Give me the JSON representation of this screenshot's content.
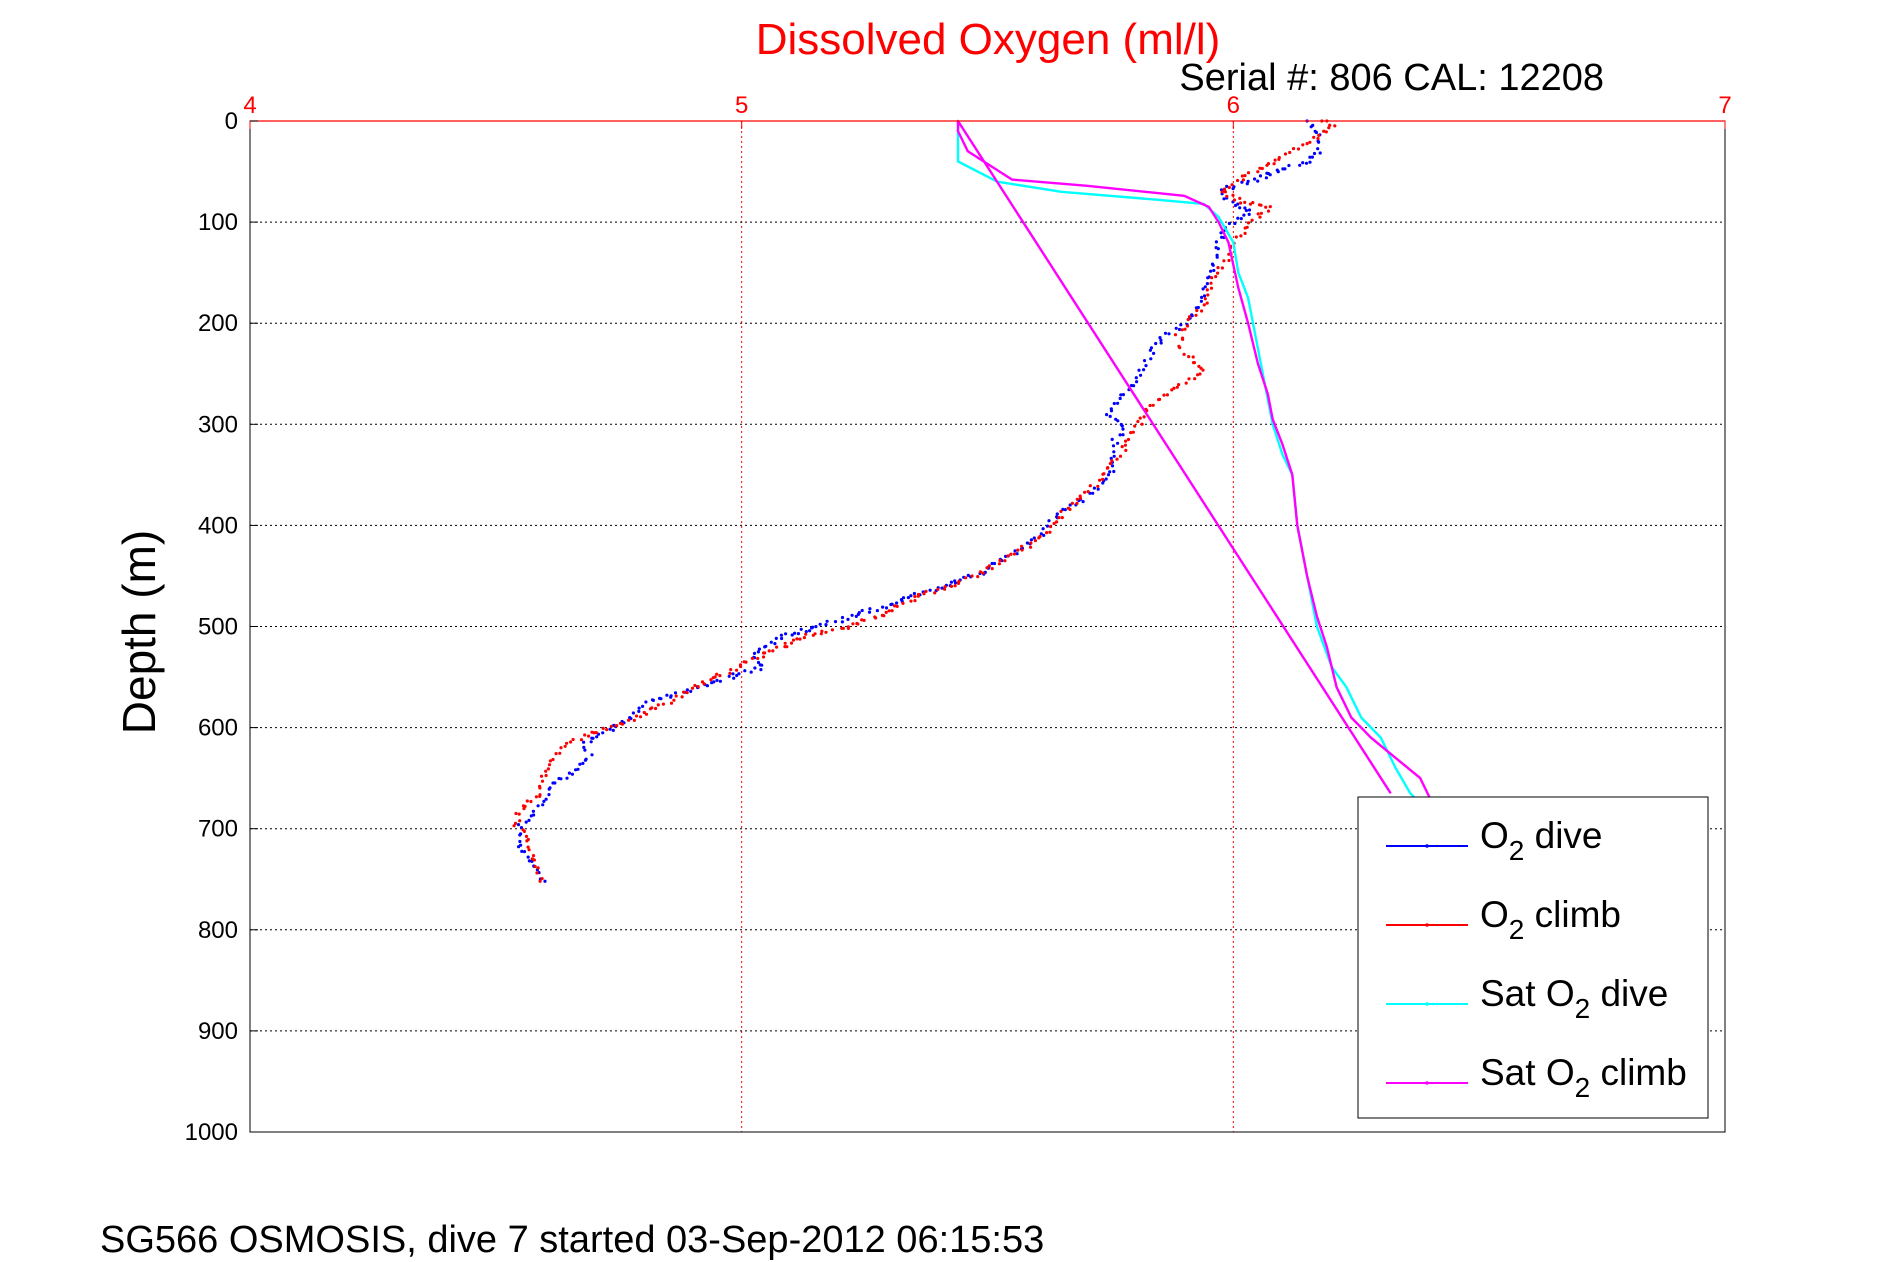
{
  "chart_data": {
    "type": "scatter",
    "title": "Dissolved Oxygen (ml/l)",
    "subtitle": "Serial #: 806  CAL: 12208",
    "ylabel": "Depth (m)",
    "footer": "SG566 OSMOSIS, dive 7 started 03-Sep-2012 06:15:53",
    "xlim": [
      4,
      7
    ],
    "ylim": [
      0,
      1000
    ],
    "x_ticks": [
      "4",
      "5",
      "6",
      "7"
    ],
    "y_ticks": [
      "0",
      "100",
      "200",
      "300",
      "400",
      "500",
      "600",
      "700",
      "800",
      "900",
      "1000"
    ],
    "y_reversed": true,
    "x_axis_position": "top",
    "grid": true,
    "legend_position": "lower-right",
    "legend": [
      {
        "prefix": "O",
        "sub": "2",
        "suffix": " dive",
        "color": "#0000ff",
        "style": "dots"
      },
      {
        "prefix": "O",
        "sub": "2",
        "suffix": " climb",
        "color": "#ff0000",
        "style": "dots"
      },
      {
        "prefix": "Sat O",
        "sub": "2",
        "suffix": " dive",
        "color": "#00ffff",
        "style": "line"
      },
      {
        "prefix": "Sat O",
        "sub": "2",
        "suffix": " climb",
        "color": "#ff00ff",
        "style": "line"
      }
    ],
    "series": [
      {
        "name": "O2 dive",
        "color": "#0000ff",
        "marker": "dot",
        "points": [
          [
            6.15,
            0
          ],
          [
            6.17,
            15
          ],
          [
            6.17,
            30
          ],
          [
            6.15,
            40
          ],
          [
            6.03,
            60
          ],
          [
            5.97,
            70
          ],
          [
            6.0,
            80
          ],
          [
            6.04,
            90
          ],
          [
            6.02,
            95
          ],
          [
            5.99,
            105
          ],
          [
            5.97,
            120
          ],
          [
            5.96,
            140
          ],
          [
            5.94,
            160
          ],
          [
            5.93,
            180
          ],
          [
            5.9,
            200
          ],
          [
            5.85,
            215
          ],
          [
            5.83,
            230
          ],
          [
            5.82,
            245
          ],
          [
            5.8,
            260
          ],
          [
            5.77,
            275
          ],
          [
            5.75,
            290
          ],
          [
            5.78,
            300
          ],
          [
            5.76,
            315
          ],
          [
            5.75,
            330
          ],
          [
            5.75,
            345
          ],
          [
            5.73,
            360
          ],
          [
            5.69,
            375
          ],
          [
            5.64,
            390
          ],
          [
            5.61,
            410
          ],
          [
            5.55,
            430
          ],
          [
            5.47,
            450
          ],
          [
            5.35,
            470
          ],
          [
            5.26,
            485
          ],
          [
            5.15,
            500
          ],
          [
            5.08,
            510
          ],
          [
            5.04,
            520
          ],
          [
            5.02,
            530
          ],
          [
            5.04,
            540
          ],
          [
            4.98,
            550
          ],
          [
            4.88,
            565
          ],
          [
            4.81,
            575
          ],
          [
            4.78,
            590
          ],
          [
            4.72,
            605
          ],
          [
            4.68,
            615
          ],
          [
            4.69,
            630
          ],
          [
            4.65,
            645
          ],
          [
            4.61,
            655
          ],
          [
            4.6,
            670
          ],
          [
            4.57,
            685
          ],
          [
            4.55,
            700
          ],
          [
            4.55,
            715
          ],
          [
            4.57,
            730
          ],
          [
            4.59,
            745
          ],
          [
            4.6,
            752
          ]
        ]
      },
      {
        "name": "O2 climb",
        "color": "#ff0000",
        "marker": "dot",
        "points": [
          [
            4.59,
            752
          ],
          [
            4.58,
            740
          ],
          [
            4.57,
            725
          ],
          [
            4.56,
            710
          ],
          [
            4.54,
            695
          ],
          [
            4.55,
            680
          ],
          [
            4.59,
            668
          ],
          [
            4.6,
            650
          ],
          [
            4.62,
            630
          ],
          [
            4.65,
            615
          ],
          [
            4.7,
            605
          ],
          [
            4.76,
            595
          ],
          [
            4.85,
            575
          ],
          [
            4.9,
            560
          ],
          [
            4.97,
            545
          ],
          [
            5.03,
            530
          ],
          [
            5.08,
            520
          ],
          [
            5.13,
            510
          ],
          [
            5.22,
            500
          ],
          [
            5.3,
            485
          ],
          [
            5.36,
            470
          ],
          [
            5.45,
            455
          ],
          [
            5.51,
            440
          ],
          [
            5.58,
            420
          ],
          [
            5.62,
            405
          ],
          [
            5.66,
            385
          ],
          [
            5.72,
            360
          ],
          [
            5.77,
            330
          ],
          [
            5.81,
            300
          ],
          [
            5.83,
            285
          ],
          [
            5.87,
            270
          ],
          [
            5.94,
            245
          ],
          [
            5.9,
            230
          ],
          [
            5.89,
            210
          ],
          [
            5.91,
            195
          ],
          [
            5.94,
            180
          ],
          [
            5.95,
            160
          ],
          [
            5.98,
            140
          ],
          [
            6.02,
            110
          ],
          [
            6.05,
            95
          ],
          [
            6.08,
            85
          ],
          [
            6.02,
            80
          ],
          [
            5.98,
            70
          ],
          [
            6.02,
            55
          ],
          [
            6.1,
            35
          ],
          [
            6.15,
            20
          ],
          [
            6.2,
            5
          ],
          [
            6.18,
            0
          ]
        ]
      },
      {
        "name": "Sat O2 dive",
        "color": "#00ffff",
        "marker": "line",
        "points": [
          [
            5.44,
            0
          ],
          [
            5.44,
            20
          ],
          [
            5.44,
            40
          ],
          [
            5.46,
            45
          ],
          [
            5.52,
            60
          ],
          [
            5.65,
            70
          ],
          [
            5.85,
            78
          ],
          [
            5.94,
            82
          ],
          [
            5.97,
            95
          ],
          [
            6.0,
            120
          ],
          [
            6.01,
            150
          ],
          [
            6.03,
            175
          ],
          [
            6.04,
            200
          ],
          [
            6.06,
            250
          ],
          [
            6.08,
            300
          ],
          [
            6.1,
            330
          ],
          [
            6.12,
            350
          ],
          [
            6.13,
            400
          ],
          [
            6.15,
            450
          ],
          [
            6.17,
            500
          ],
          [
            6.2,
            540
          ],
          [
            6.23,
            560
          ],
          [
            6.26,
            590
          ],
          [
            6.3,
            610
          ],
          [
            6.33,
            640
          ],
          [
            6.36,
            665
          ],
          [
            6.37,
            670
          ]
        ]
      },
      {
        "name": "Sat O2 climb",
        "color": "#ff00ff",
        "marker": "line",
        "points": [
          [
            6.4,
            670
          ],
          [
            6.38,
            650
          ],
          [
            6.33,
            630
          ],
          [
            6.28,
            610
          ],
          [
            6.24,
            590
          ],
          [
            6.21,
            560
          ],
          [
            6.19,
            520
          ],
          [
            6.17,
            490
          ],
          [
            6.15,
            450
          ],
          [
            6.13,
            400
          ],
          [
            6.12,
            350
          ],
          [
            6.1,
            320
          ],
          [
            6.08,
            295
          ],
          [
            6.07,
            270
          ],
          [
            6.05,
            240
          ],
          [
            6.03,
            200
          ],
          [
            6.01,
            165
          ],
          [
            5.99,
            120
          ],
          [
            5.97,
            100
          ],
          [
            5.95,
            85
          ],
          [
            5.9,
            74
          ],
          [
            5.7,
            64
          ],
          [
            5.55,
            58
          ],
          [
            5.46,
            30
          ],
          [
            5.44,
            10
          ],
          [
            5.44,
            0
          ],
          [
            6.32,
            665
          ]
        ]
      }
    ]
  }
}
